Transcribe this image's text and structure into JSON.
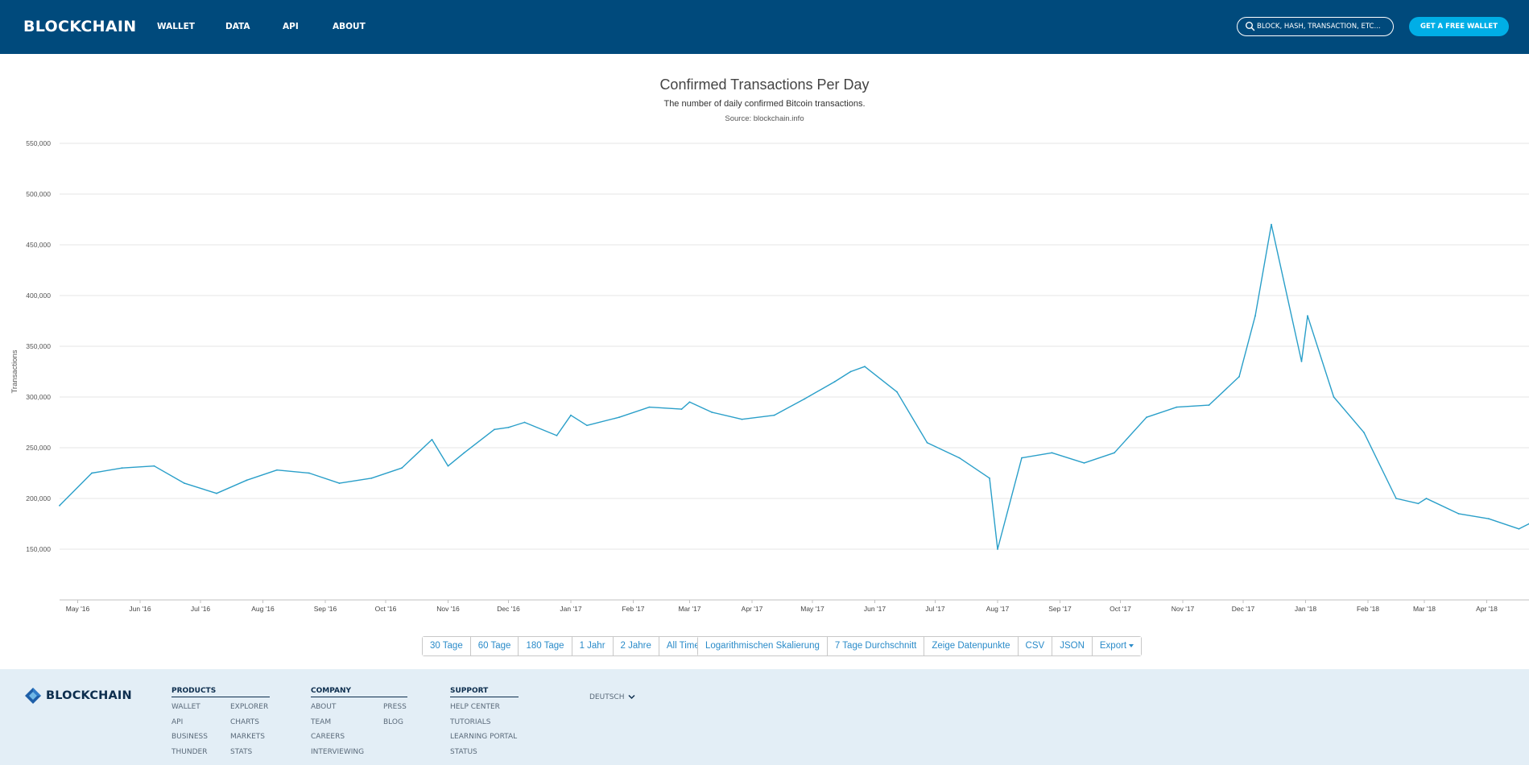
{
  "header": {
    "brand": "BLOCKCHAIN",
    "nav": [
      "WALLET",
      "DATA",
      "API",
      "ABOUT"
    ],
    "search_placeholder": "BLOCK, HASH, TRANSACTION, ETC...",
    "cta_label": "GET A FREE WALLET",
    "colors": {
      "background": "#004a7c",
      "cta": "#00aee6"
    }
  },
  "chart_header": {
    "title": "Confirmed Transactions Per Day",
    "subtitle": "The number of daily confirmed Bitcoin transactions.",
    "source": "Source: blockchain.info"
  },
  "chart_data": {
    "type": "line",
    "title": "Confirmed Transactions Per Day",
    "subtitle": "The number of daily confirmed Bitcoin transactions.",
    "xlabel": "",
    "ylabel": "Transactions",
    "ylim": [
      100000,
      550000
    ],
    "xlim": [
      "2016-04-22",
      "2018-04-22"
    ],
    "yticks": [
      150000,
      200000,
      250000,
      300000,
      350000,
      400000,
      450000,
      500000,
      550000
    ],
    "ytick_labels": [
      "150,000",
      "200,000",
      "250,000",
      "300,000",
      "350,000",
      "400,000",
      "450,000",
      "500,000",
      "550,000"
    ],
    "xtick_labels": [
      "May '16",
      "Jun '16",
      "Jul '16",
      "Aug '16",
      "Sep '16",
      "Oct '16",
      "Nov '16",
      "Dec '16",
      "Jan '17",
      "Feb '17",
      "Mar '17",
      "Apr '17",
      "May '17",
      "Jun '17",
      "Jul '17",
      "Aug '17",
      "Sep '17",
      "Oct '17",
      "Nov '17",
      "Dec '17",
      "Jan '18",
      "Feb '18",
      "Mar '18",
      "Apr '18"
    ],
    "xtick_dates": [
      "2016-05-01",
      "2016-06-01",
      "2016-07-01",
      "2016-08-01",
      "2016-09-01",
      "2016-10-01",
      "2016-11-01",
      "2016-12-01",
      "2017-01-01",
      "2017-02-01",
      "2017-03-01",
      "2017-04-01",
      "2017-05-01",
      "2017-06-01",
      "2017-07-01",
      "2017-08-01",
      "2017-09-01",
      "2017-10-01",
      "2017-11-01",
      "2017-12-01",
      "2018-01-01",
      "2018-02-01",
      "2018-03-01",
      "2018-04-01"
    ],
    "grid": true,
    "series": [
      {
        "color": "#2a9fc9",
        "x": [
          "2016-04-22",
          "2016-05-08",
          "2016-05-23",
          "2016-06-08",
          "2016-06-23",
          "2016-07-09",
          "2016-07-24",
          "2016-08-08",
          "2016-08-24",
          "2016-09-08",
          "2016-09-24",
          "2016-10-09",
          "2016-10-24",
          "2016-11-01",
          "2016-11-09",
          "2016-11-24",
          "2016-12-01",
          "2016-12-09",
          "2016-12-25",
          "2017-01-01",
          "2017-01-09",
          "2017-01-25",
          "2017-02-09",
          "2017-02-25",
          "2017-03-01",
          "2017-03-12",
          "2017-03-27",
          "2017-04-12",
          "2017-04-27",
          "2017-05-12",
          "2017-05-20",
          "2017-05-27",
          "2017-06-12",
          "2017-06-27",
          "2017-07-13",
          "2017-07-28",
          "2017-08-01",
          "2017-08-13",
          "2017-08-28",
          "2017-09-13",
          "2017-09-28",
          "2017-10-14",
          "2017-10-29",
          "2017-11-14",
          "2017-11-29",
          "2017-12-07",
          "2017-12-15",
          "2017-12-30",
          "2018-01-02",
          "2018-01-15",
          "2018-01-30",
          "2018-02-15",
          "2018-02-26",
          "2018-03-02",
          "2018-03-18",
          "2018-04-02",
          "2018-04-17",
          "2018-04-22"
        ],
        "y": [
          193000,
          225000,
          230000,
          232000,
          215000,
          205000,
          218000,
          228000,
          225000,
          215000,
          220000,
          230000,
          258000,
          232000,
          245000,
          268000,
          270000,
          275000,
          262000,
          282000,
          272000,
          280000,
          290000,
          288000,
          295000,
          285000,
          278000,
          282000,
          298000,
          315000,
          325000,
          330000,
          305000,
          255000,
          240000,
          220000,
          150000,
          240000,
          245000,
          235000,
          245000,
          280000,
          290000,
          292000,
          320000,
          380000,
          470000,
          335000,
          380000,
          300000,
          265000,
          200000,
          195000,
          200000,
          185000,
          180000,
          170000,
          175000
        ]
      }
    ]
  },
  "controls": {
    "range_buttons": [
      "30 Tage",
      "60 Tage",
      "180 Tage",
      "1 Jahr",
      "2 Jahre",
      "All Time"
    ],
    "option_buttons": [
      "Logarithmischen Skalierung",
      "7 Tage Durchschnitt",
      "Zeige Datenpunkte",
      "CSV",
      "JSON",
      "Export"
    ]
  },
  "footer": {
    "brand": "BLOCKCHAIN",
    "products_heading": "PRODUCTS",
    "products_col1": [
      "WALLET",
      "API",
      "BUSINESS",
      "THUNDER"
    ],
    "products_col2": [
      "EXPLORER",
      "CHARTS",
      "MARKETS",
      "STATS"
    ],
    "company_heading": "COMPANY",
    "company_col1": [
      "ABOUT",
      "TEAM",
      "CAREERS",
      "INTERVIEWING"
    ],
    "company_col2": [
      "PRESS",
      "BLOG"
    ],
    "support_heading": "SUPPORT",
    "support_col1": [
      "HELP CENTER",
      "TUTORIALS",
      "LEARNING PORTAL",
      "STATUS"
    ],
    "language": "DEUTSCH",
    "colors": {
      "background": "#e3eef6"
    }
  }
}
